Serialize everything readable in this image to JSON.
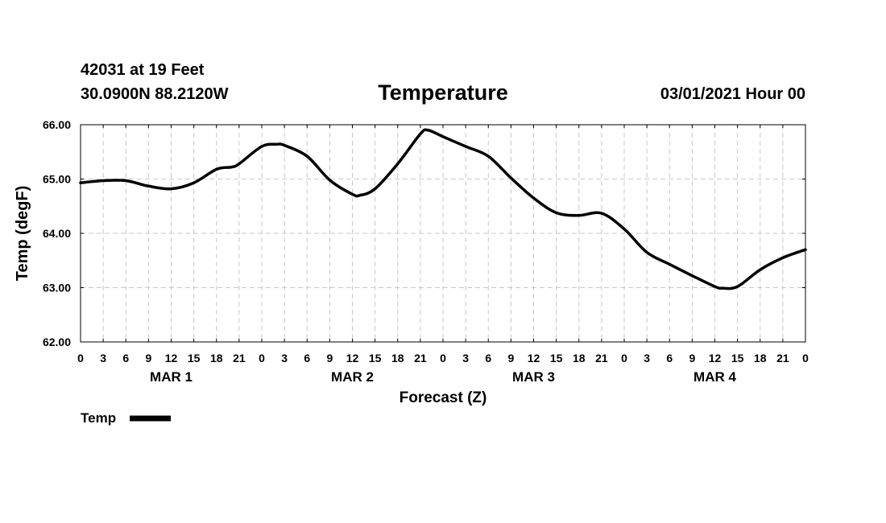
{
  "header": {
    "station": "42031 at 19 Feet",
    "location": "30.0900N 88.2120W",
    "title": "Temperature",
    "run_time": "03/01/2021 Hour 00"
  },
  "chart_data": {
    "type": "line",
    "title": "Temperature",
    "xlabel": "Forecast (Z)",
    "ylabel": "Temp (degF)",
    "ylim": [
      62.0,
      66.0
    ],
    "y_ticks": [
      62.0,
      63.0,
      64.0,
      65.0,
      66.0
    ],
    "y_tick_labels": [
      "62.00",
      "63.00",
      "64.00",
      "65.00",
      "66.00"
    ],
    "xlim": [
      0,
      96
    ],
    "x_tick_hours": [
      0,
      3,
      6,
      9,
      12,
      15,
      18,
      21,
      24,
      27,
      30,
      33,
      36,
      39,
      42,
      45,
      48,
      51,
      54,
      57,
      60,
      63,
      66,
      69,
      72,
      75,
      78,
      81,
      84,
      87,
      90,
      93,
      96
    ],
    "x_tick_labels": [
      "0",
      "3",
      "6",
      "9",
      "12",
      "15",
      "18",
      "21",
      "0",
      "3",
      "6",
      "9",
      "12",
      "15",
      "18",
      "21",
      "0",
      "3",
      "6",
      "9",
      "12",
      "15",
      "18",
      "21",
      "0",
      "3",
      "6",
      "9",
      "12",
      "15",
      "18",
      "21",
      "0"
    ],
    "day_labels": [
      {
        "label": "MAR 1",
        "hour": 12
      },
      {
        "label": "MAR 2",
        "hour": 36
      },
      {
        "label": "MAR 3",
        "hour": 60
      },
      {
        "label": "MAR 4",
        "hour": 84
      }
    ],
    "grid": true,
    "legend": "bottom-left",
    "series": [
      {
        "name": "Temp",
        "color": "#000000",
        "x": [
          0,
          3,
          6,
          9,
          12,
          15,
          18,
          20,
          21,
          24,
          26,
          27,
          30,
          33,
          36,
          37,
          39,
          42,
          45,
          46,
          48,
          51,
          54,
          57,
          60,
          63,
          66,
          69,
          72,
          75,
          78,
          81,
          84,
          85,
          87,
          90,
          93,
          96
        ],
        "y": [
          64.93,
          64.97,
          64.97,
          64.87,
          64.82,
          64.93,
          65.18,
          65.22,
          65.28,
          65.6,
          65.64,
          65.62,
          65.42,
          64.98,
          64.72,
          64.7,
          64.82,
          65.28,
          65.83,
          65.9,
          65.78,
          65.6,
          65.42,
          65.02,
          64.65,
          64.38,
          64.33,
          64.37,
          64.08,
          63.65,
          63.43,
          63.22,
          63.02,
          62.99,
          63.02,
          63.33,
          63.55,
          63.7
        ]
      }
    ]
  }
}
